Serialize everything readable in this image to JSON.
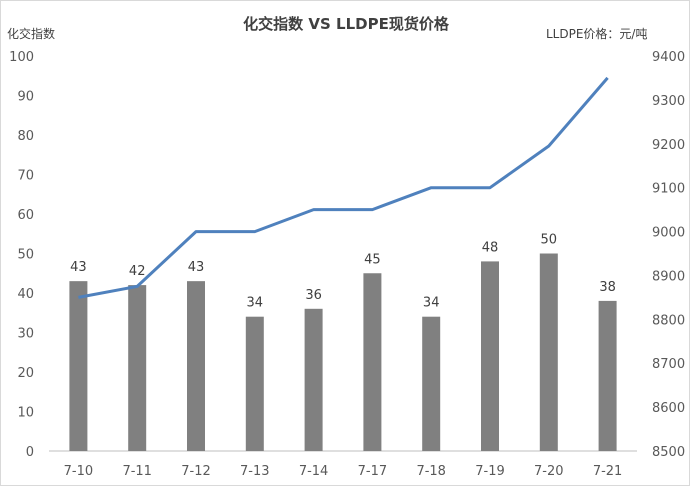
{
  "chart_data": {
    "type": "bar",
    "title": "化交指数 VS LLDPE现货价格",
    "ylabel": "化交指数",
    "ylabel_right": "LLDPE价格：元/吨",
    "categories": [
      "7-10",
      "7-11",
      "7-12",
      "7-13",
      "7-14",
      "7-17",
      "7-18",
      "7-19",
      "7-20",
      "7-21"
    ],
    "ylim": [
      0,
      100
    ],
    "ylim_right": [
      8500,
      9400
    ],
    "yticks": [
      0,
      10,
      20,
      30,
      40,
      50,
      60,
      70,
      80,
      90,
      100
    ],
    "yticks_right": [
      8500,
      8600,
      8700,
      8800,
      8900,
      9000,
      9100,
      9200,
      9300,
      9400
    ],
    "grid": false,
    "series": [
      {
        "type": "bar",
        "axis": "left",
        "color": "#808080",
        "values": [
          43,
          42,
          43,
          34,
          36,
          45,
          34,
          48,
          50,
          38
        ]
      },
      {
        "type": "line",
        "axis": "right",
        "color": "#4f81bd",
        "values": [
          8850,
          8875,
          9000,
          9000,
          9050,
          9050,
          9100,
          9100,
          9195,
          9350
        ]
      }
    ]
  }
}
